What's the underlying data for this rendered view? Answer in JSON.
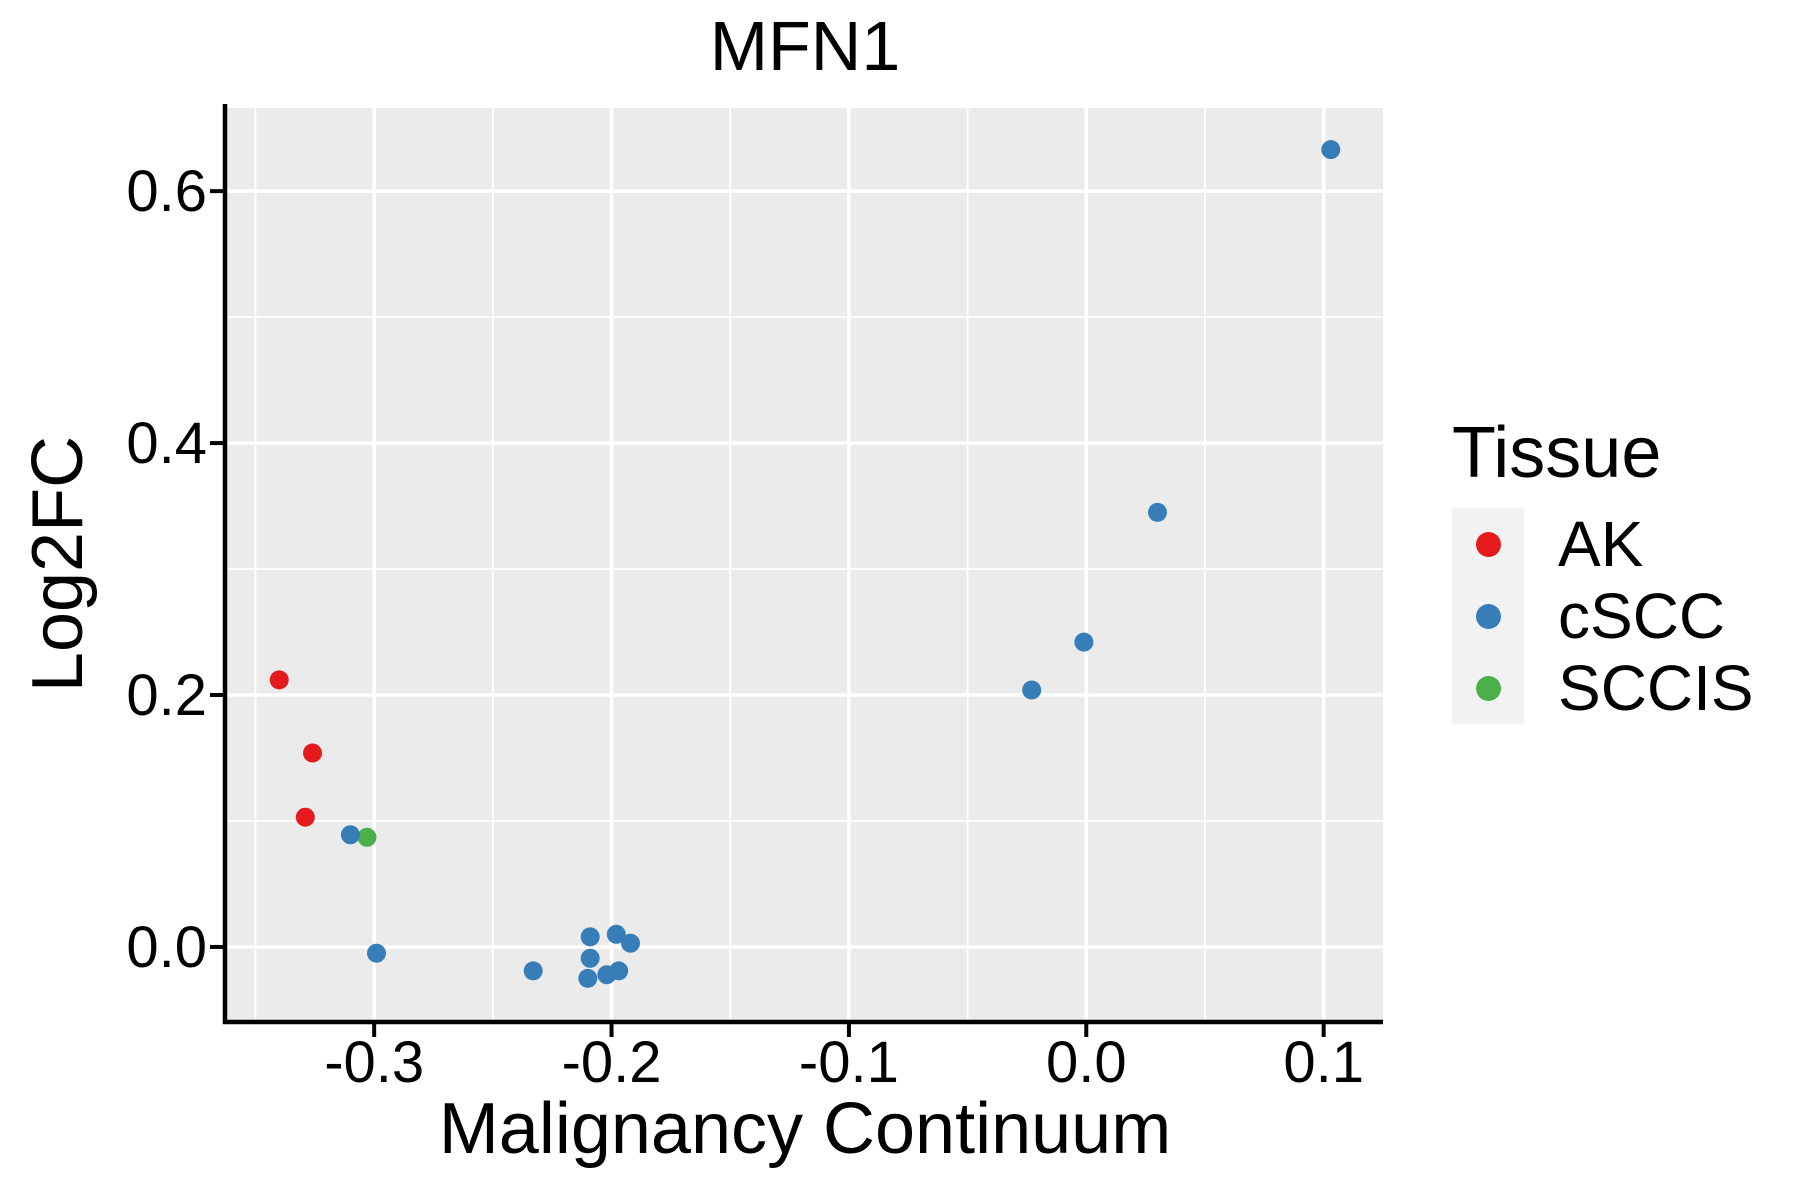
{
  "title": "MFN1",
  "colors": {
    "panel_bg": "#EBEBEB",
    "grid": "#FFFFFF",
    "axis": "#000000",
    "text": "#000000",
    "legend_key_bg": "#F2F2F2",
    "ak_red": "#E41A1C",
    "cscc_blue": "#377EB8",
    "sccis_green": "#4DAF4A"
  },
  "legend": {
    "title": "Tissue",
    "items": [
      {
        "label": "AK",
        "color": "#E41A1C"
      },
      {
        "label": "cSCC",
        "color": "#377EB8"
      },
      {
        "label": "SCCIS",
        "color": "#4DAF4A"
      }
    ]
  },
  "chart_data": {
    "type": "scatter",
    "title": "MFN1",
    "xlabel": "Malignancy Continuum",
    "ylabel": "Log2FC",
    "xlim": [
      -0.362,
      0.125
    ],
    "ylim": [
      -0.058,
      0.666
    ],
    "x_ticks": [
      -0.3,
      -0.2,
      -0.1,
      0.0,
      0.1
    ],
    "x_tick_labels": [
      "-0.3",
      "-0.2",
      "-0.1",
      "0.0",
      "0.1"
    ],
    "y_ticks": [
      0.0,
      0.2,
      0.4,
      0.6
    ],
    "y_tick_labels": [
      "0.0",
      "0.2",
      "0.4",
      "0.6"
    ],
    "x_minor_ticks": [
      -0.35,
      -0.25,
      -0.15,
      -0.05,
      0.05
    ],
    "y_minor_ticks": [
      0.1,
      0.3,
      0.5
    ],
    "grid": "major and minor white gridlines on gray panel",
    "legend_position": "right",
    "legend_title": "Tissue",
    "point_radius_px": 9.5,
    "draw_order": [
      "AK",
      "SCCIS",
      "cSCC"
    ],
    "series": [
      {
        "name": "AK",
        "color": "#E41A1C",
        "points": [
          [
            -0.34,
            0.212
          ],
          [
            -0.326,
            0.154
          ],
          [
            -0.329,
            0.103
          ]
        ]
      },
      {
        "name": "cSCC",
        "color": "#377EB8",
        "points": [
          [
            -0.31,
            0.089
          ],
          [
            -0.299,
            -0.005
          ],
          [
            -0.233,
            -0.019
          ],
          [
            -0.209,
            0.008
          ],
          [
            -0.198,
            0.01
          ],
          [
            -0.192,
            0.003
          ],
          [
            -0.209,
            -0.009
          ],
          [
            -0.21,
            -0.025
          ],
          [
            -0.202,
            -0.022
          ],
          [
            -0.197,
            -0.019
          ],
          [
            -0.023,
            0.204
          ],
          [
            -0.001,
            0.242
          ],
          [
            0.03,
            0.345
          ],
          [
            0.103,
            0.633
          ]
        ]
      },
      {
        "name": "SCCIS",
        "color": "#4DAF4A",
        "points": [
          [
            -0.303,
            0.087
          ]
        ]
      }
    ]
  }
}
